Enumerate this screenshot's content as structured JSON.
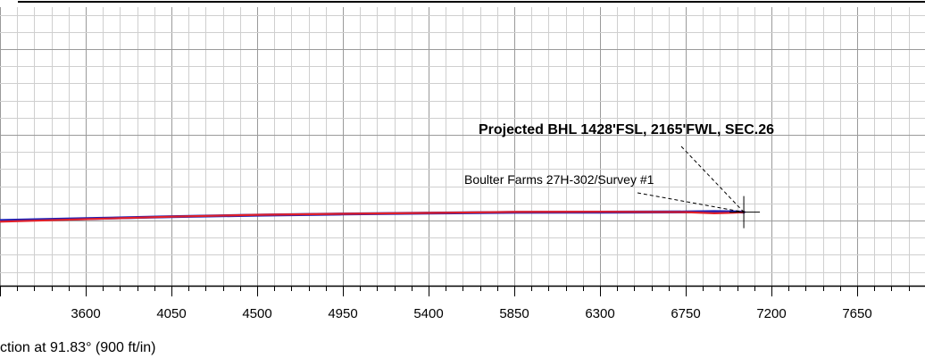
{
  "chart_data": {
    "type": "line",
    "title": "",
    "xlabel": "",
    "ylabel": "",
    "grid": true,
    "xlim": [
      3150,
      8060
    ],
    "ylim": [
      -1050,
      300
    ],
    "x_ticks": [
      3600,
      4050,
      4500,
      4950,
      5400,
      5850,
      6300,
      6750,
      7200,
      7650
    ],
    "series": [
      {
        "color": "#1f1fb4",
        "x": [
          3150,
          3600,
          4050,
          4500,
          4950,
          5400,
          5850,
          6300,
          6750,
          6900,
          7000,
          7055
        ],
        "y": [
          0,
          10,
          20,
          28,
          34,
          39,
          43,
          44,
          45,
          47,
          46,
          44
        ]
      },
      {
        "color": "#e0202a",
        "x": [
          3150,
          3600,
          4050,
          4500,
          4950,
          5400,
          5850,
          6300,
          6750,
          6900,
          7000,
          7055
        ],
        "y": [
          -6,
          7,
          20,
          30,
          35,
          40,
          45,
          46,
          44,
          38,
          41,
          44
        ]
      }
    ],
    "annotations": [
      {
        "text": "Projected BHL 1428'FSL, 2165'FWL, SEC.26",
        "style": "bold"
      },
      {
        "text": "Boulter Farms 27H-302/Survey #1",
        "style": "normal"
      }
    ],
    "target_marker": {
      "x": 7055,
      "y": 44
    }
  },
  "caption": "ction at 91.83° (900 ft/in)",
  "colors": {
    "grid_minor": "#cfcfcf",
    "grid_major": "#9a9a9a",
    "axis": "#000000"
  }
}
